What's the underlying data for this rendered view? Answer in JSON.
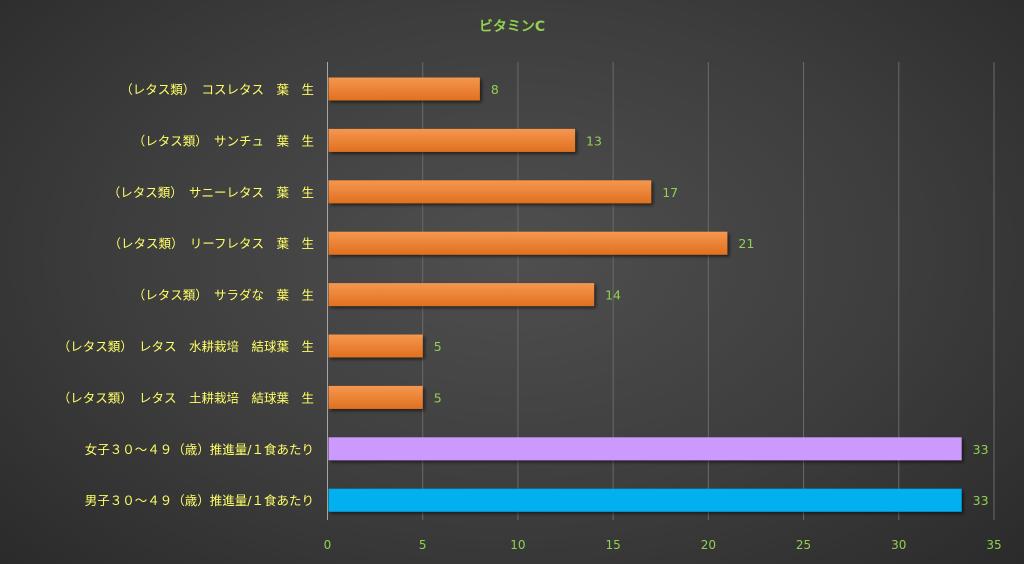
{
  "chart_data": {
    "type": "bar",
    "orientation": "horizontal",
    "title": "ビタミンC",
    "xlabel": "",
    "ylabel": "",
    "xlim": [
      0,
      35
    ],
    "x_ticks": [
      0,
      5,
      10,
      15,
      20,
      25,
      30,
      35
    ],
    "grid": true,
    "legend": false,
    "categories": [
      "（レタス類）　コスレタス　葉　生",
      "（レタス類）　サンチュ　葉　生",
      "（レタス類）　サニーレタス　葉　生",
      "（レタス類）　リーフレタス　葉　生",
      "（レタス類）　サラダな　葉　生",
      "（レタス類）　レタス　水耕栽培　結球葉　生",
      "（レタス類）　レタス　土耕栽培　結球葉　生",
      "女子３０～４９（歳）推進量/１食あたり",
      "男子３０～４９（歳）推進量/１食あたり"
    ],
    "values": [
      8,
      13,
      17,
      21,
      14,
      5,
      5,
      33.3,
      33.3
    ],
    "value_labels": [
      "8",
      "13",
      "17",
      "21",
      "14",
      "5",
      "5",
      "33",
      "33"
    ],
    "bar_colors": [
      "#ed7d31",
      "#ed7d31",
      "#ed7d31",
      "#ed7d31",
      "#ed7d31",
      "#ed7d31",
      "#ed7d31",
      "#cc99ff",
      "#00b0f0"
    ]
  },
  "colors": {
    "title": "#92d050",
    "category_label": "#ffff66",
    "data_label": "#92d050",
    "tick_label": "#92d050",
    "grid": "#6a6a6a",
    "axis": "#a6a6a6"
  }
}
